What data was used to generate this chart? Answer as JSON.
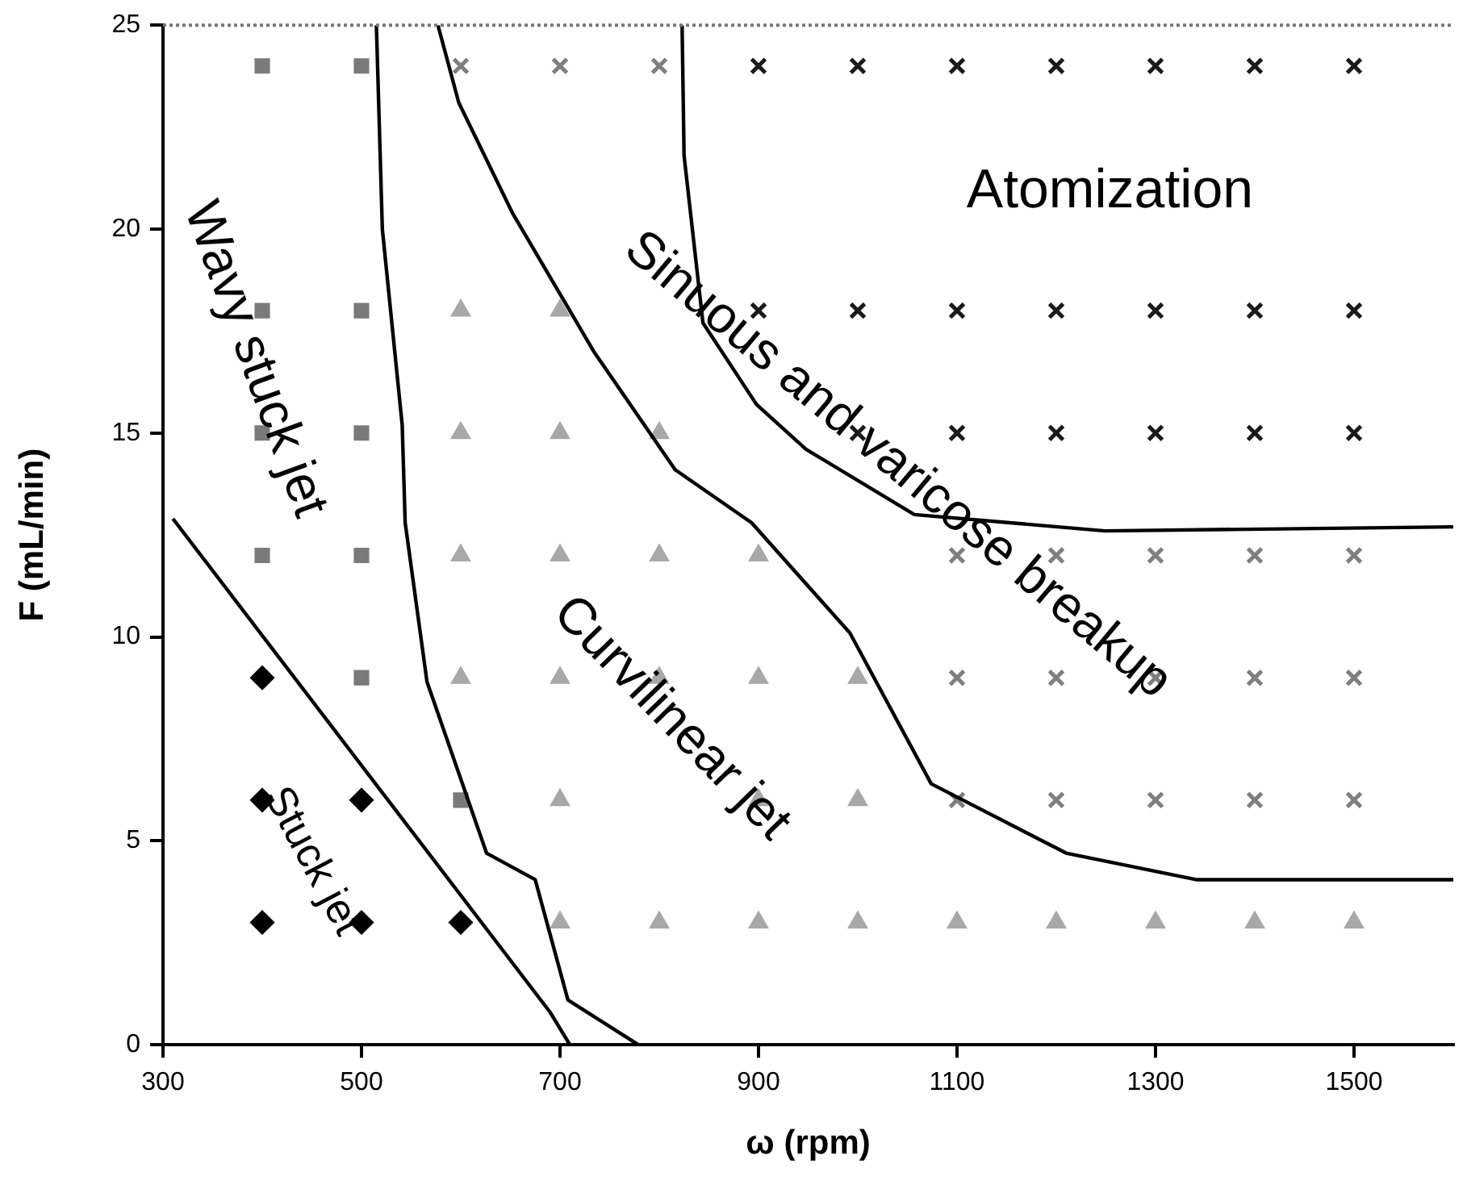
{
  "chart_data": {
    "type": "scatter",
    "xlabel": "ω (rpm)",
    "ylabel": "F (mL/min)",
    "xlim": [
      300,
      1600
    ],
    "xticks": [
      300,
      500,
      700,
      900,
      1100,
      1300,
      1500
    ],
    "ylim": [
      0,
      25
    ],
    "yticks": [
      0,
      5,
      10,
      15,
      20,
      25
    ],
    "grid": false,
    "legend": false,
    "series": [
      {
        "name": "Stuck jet",
        "marker": "diamond",
        "color": "#000000",
        "x": [
          400,
          400,
          400,
          500,
          500,
          600
        ],
        "values": [
          3,
          6,
          9,
          3,
          6,
          3
        ]
      },
      {
        "name": "Wavy stuck jet",
        "marker": "square",
        "color": "#7a7a7a",
        "x": [
          400,
          400,
          400,
          400,
          500,
          500,
          500,
          500,
          500,
          600
        ],
        "values": [
          12,
          15,
          18,
          24,
          9,
          12,
          15,
          18,
          24,
          6
        ]
      },
      {
        "name": "Curvilinear jet",
        "marker": "triangle",
        "color": "#a8a8a8",
        "x": [
          600,
          600,
          600,
          600,
          700,
          700,
          700,
          700,
          700,
          700,
          800,
          800,
          800,
          800,
          900,
          900,
          900,
          900,
          1000,
          1000,
          1000,
          1100,
          1200,
          1300,
          1400,
          1500
        ],
        "values": [
          9,
          12,
          15,
          18,
          3,
          6,
          9,
          12,
          15,
          18,
          3,
          9,
          12,
          15,
          3,
          6,
          9,
          12,
          3,
          6,
          9,
          3,
          3,
          3,
          3,
          3
        ]
      },
      {
        "name": "Sinuous and varicose breakup",
        "marker": "cross",
        "color": "#7f7f7f",
        "x": [
          600,
          700,
          800,
          1100,
          1200,
          1300,
          1400,
          1500,
          1100,
          1200,
          1300,
          1400,
          1500,
          1100,
          1200,
          1300,
          1400,
          1500
        ],
        "values": [
          24,
          24,
          24,
          12,
          12,
          12,
          12,
          12,
          9,
          9,
          9,
          9,
          9,
          6,
          6,
          6,
          6,
          6
        ]
      },
      {
        "name": "Atomization",
        "marker": "cross",
        "color": "#1a1a1a",
        "x": [
          900,
          1000,
          1100,
          1200,
          1300,
          1400,
          1500,
          900,
          1000,
          1100,
          1200,
          1300,
          1400,
          1500,
          1000,
          1100,
          1200,
          1300,
          1400,
          1500
        ],
        "values": [
          24,
          24,
          24,
          24,
          24,
          24,
          24,
          18,
          18,
          18,
          18,
          18,
          18,
          18,
          15,
          15,
          15,
          15,
          15,
          15
        ]
      },
      {
        "type": "line",
        "marker": "none",
        "color": "#000000",
        "x": [
          310,
          690,
          710
        ],
        "values": [
          12.9,
          0.8,
          0
        ]
      },
      {
        "type": "line",
        "marker": "none",
        "color": "#000000",
        "x": [
          515,
          521,
          541,
          544,
          566,
          626,
          675,
          708,
          779
        ],
        "values": [
          25,
          20,
          15.2,
          12.8,
          8.9,
          4.7,
          4.05,
          1.1,
          0
        ]
      },
      {
        "type": "line",
        "marker": "none",
        "color": "#000000",
        "x": [
          577,
          598,
          652,
          734,
          816,
          893,
          992,
          1074,
          1210,
          1341,
          1600
        ],
        "values": [
          25,
          23.1,
          20.4,
          17,
          14.1,
          12.8,
          10.1,
          6.4,
          4.7,
          4.05,
          4.05
        ]
      },
      {
        "type": "line",
        "marker": "none",
        "color": "#000000",
        "x": [
          823,
          825,
          844,
          898,
          948,
          1057,
          1249,
          1600
        ],
        "values": [
          25,
          21.8,
          17.7,
          15.7,
          14.6,
          13,
          12.6,
          12.7
        ]
      }
    ]
  }
}
